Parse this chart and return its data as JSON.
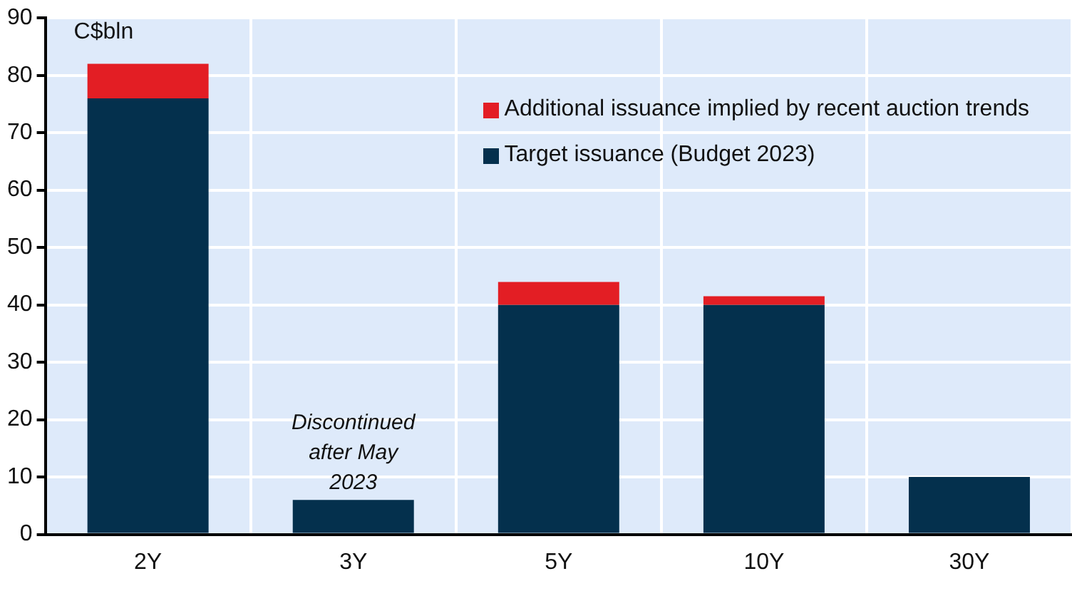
{
  "chart_data": {
    "type": "bar",
    "stacked": true,
    "ylabel": "C$bln",
    "categories": [
      "2Y",
      "3Y",
      "5Y",
      "10Y",
      "30Y"
    ],
    "series": [
      {
        "name": "Target issuance (Budget 2023)",
        "color": "#04304d",
        "values": [
          76,
          6,
          40,
          40,
          10
        ]
      },
      {
        "name": "Additional issuance implied by recent auction trends",
        "color": "#e31e24",
        "values": [
          6,
          null,
          4,
          1.5,
          null
        ]
      }
    ],
    "ylim": [
      0,
      90
    ],
    "yticks": [
      0,
      10,
      20,
      30,
      40,
      50,
      60,
      70,
      80,
      90
    ],
    "grid": true,
    "legend": "top right",
    "annotations": [
      {
        "text": "Discontinued after May 2023",
        "x": "3Y",
        "y": 6
      }
    ]
  }
}
